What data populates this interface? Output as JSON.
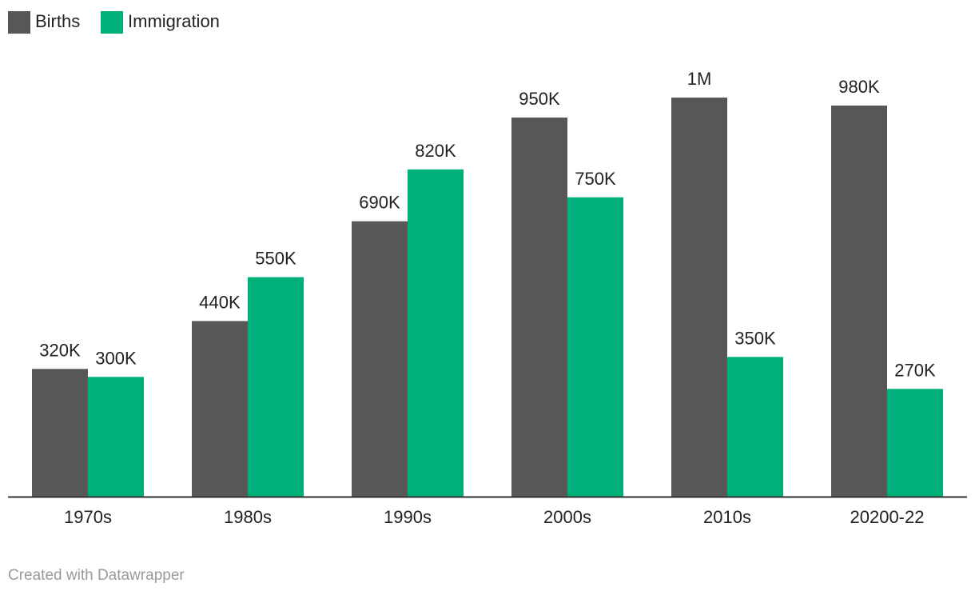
{
  "chart_data": {
    "type": "bar",
    "categories": [
      "1970s",
      "1980s",
      "1990s",
      "2000s",
      "2010s",
      "20200-22"
    ],
    "series": [
      {
        "name": "Births",
        "color": "#575755",
        "values": [
          320000,
          440000,
          690000,
          950000,
          1000000,
          980000
        ],
        "labels": [
          "320K",
          "440K",
          "690K",
          "950K",
          "1M",
          "980K"
        ]
      },
      {
        "name": "Immigration",
        "color": "#00b07a",
        "values": [
          300000,
          550000,
          820000,
          750000,
          350000,
          270000
        ],
        "labels": [
          "300K",
          "550K",
          "820K",
          "750K",
          "350K",
          "270K"
        ]
      }
    ],
    "ylim": [
      0,
      1000000
    ],
    "grid": false,
    "legend_position": "top-left",
    "axis_line_color": "#333333"
  },
  "footer": {
    "credit": "Created with Datawrapper"
  }
}
